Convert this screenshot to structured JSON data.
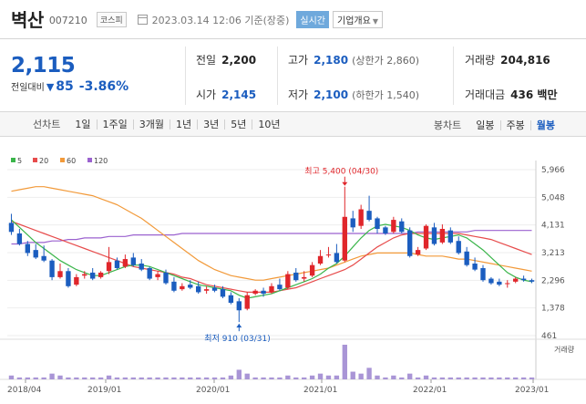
{
  "header": {
    "stock_name": "벽산",
    "stock_code": "007210",
    "market": "코스피",
    "date": "2023.03.14 12:06 기준(장중)",
    "realtime_label": "실시간",
    "company_label": "기업개요"
  },
  "price": {
    "current": "2,115",
    "change_label": "전일대비",
    "change_value": "85",
    "change_rate": "-3.86%"
  },
  "stats": {
    "prev_close_label": "전일",
    "prev_close": "2,200",
    "open_label": "시가",
    "open": "2,145",
    "high_label": "고가",
    "high": "2,180",
    "upper_limit": "(상한가 2,860)",
    "low_label": "저가",
    "low": "2,100",
    "lower_limit": "(하한가 1,540)",
    "volume_label": "거래량",
    "volume": "204,816",
    "amount_label": "거래대금",
    "amount": "436 백만"
  },
  "toolbar": {
    "line_title": "선차트",
    "line_items": [
      "1일",
      "1주일",
      "3개월",
      "1년",
      "3년",
      "5년",
      "10년"
    ],
    "candle_title": "봉차트",
    "candle_items": [
      "일봉",
      "주봉",
      "월봉"
    ],
    "candle_active": "월봉"
  },
  "colors": {
    "up": "#e0262b",
    "down": "#1b5dbf",
    "ma5": "#3ab54a",
    "ma20": "#e74c4c",
    "ma60": "#f29a3a",
    "ma120": "#9b62cf",
    "volume": "#a995d6"
  },
  "chart_data": {
    "type": "candlestick",
    "legend": [
      "5",
      "20",
      "60",
      "120"
    ],
    "y_ticks": [
      "5,966",
      "5,048",
      "4,131",
      "3,213",
      "2,296",
      "1,378",
      "461"
    ],
    "ylim": [
      461,
      5966
    ],
    "x_ticks": [
      "2018/04",
      "2019/01",
      "2020/01",
      "2021/01",
      "2022/01",
      "2023/01"
    ],
    "volume_label": "거래량",
    "annotations": {
      "high": "최고 5,400 (04/30)",
      "low": "최저 910 (03/31)"
    },
    "candles": [
      [
        4200,
        4500,
        3900,
        3800
      ],
      [
        3850,
        4000,
        3500,
        3450
      ],
      [
        3500,
        3600,
        3200,
        3100
      ],
      [
        3300,
        3500,
        3050,
        3000
      ],
      [
        3100,
        3450,
        2950,
        2900
      ],
      [
        2950,
        3000,
        2400,
        2300
      ],
      [
        2400,
        2850,
        2600,
        2350
      ],
      [
        2600,
        2700,
        2100,
        2050
      ],
      [
        2150,
        2500,
        2400,
        2100
      ],
      [
        2450,
        2600,
        2500,
        2350
      ],
      [
        2550,
        2700,
        2350,
        2300
      ],
      [
        2400,
        2600,
        2550,
        2350
      ],
      [
        2600,
        3400,
        2900,
        2500
      ],
      [
        2950,
        3050,
        2700,
        2650
      ],
      [
        2750,
        3150,
        3000,
        2700
      ],
      [
        3050,
        3200,
        2800,
        2750
      ],
      [
        2850,
        3000,
        2650,
        2600
      ],
      [
        2700,
        2750,
        2350,
        2300
      ],
      [
        2400,
        2600,
        2500,
        2300
      ],
      [
        2550,
        2650,
        2200,
        2150
      ],
      [
        2250,
        2400,
        1950,
        1900
      ],
      [
        2000,
        2200,
        2100,
        1950
      ],
      [
        2150,
        2300,
        2050,
        2000
      ],
      [
        2100,
        2250,
        1900,
        1850
      ],
      [
        1950,
        2100,
        2000,
        1850
      ],
      [
        2050,
        2150,
        1950,
        1900
      ],
      [
        2000,
        2100,
        1750,
        1700
      ],
      [
        1800,
        1900,
        1550,
        1500
      ],
      [
        1600,
        1700,
        1300,
        910
      ],
      [
        1350,
        1900,
        1800,
        1300
      ],
      [
        1850,
        2000,
        1950,
        1800
      ],
      [
        1950,
        2050,
        1850,
        1750
      ],
      [
        1900,
        2200,
        2100,
        1850
      ],
      [
        2150,
        2350,
        2000,
        1950
      ],
      [
        2050,
        2600,
        2500,
        2000
      ],
      [
        2550,
        2700,
        2300,
        2250
      ],
      [
        2350,
        2600,
        2400,
        2250
      ],
      [
        2450,
        2900,
        2800,
        2400
      ],
      [
        2850,
        3300,
        3100,
        2800
      ],
      [
        3150,
        3400,
        3150,
        3050
      ],
      [
        3200,
        3500,
        2900,
        2850
      ],
      [
        2950,
        5400,
        4400,
        2900
      ],
      [
        4350,
        4600,
        4050,
        3900
      ],
      [
        4100,
        4800,
        4650,
        4000
      ],
      [
        4600,
        5100,
        4300,
        4250
      ],
      [
        4350,
        4400,
        4000,
        3850
      ],
      [
        4050,
        4100,
        3850,
        3800
      ],
      [
        3900,
        4400,
        4300,
        3850
      ],
      [
        4250,
        4350,
        3900,
        3850
      ],
      [
        3950,
        4050,
        3100,
        3050
      ],
      [
        3150,
        3400,
        3300,
        3100
      ],
      [
        3350,
        4150,
        4100,
        3300
      ],
      [
        4050,
        4200,
        3500,
        3450
      ],
      [
        3550,
        4150,
        4000,
        3500
      ],
      [
        3950,
        4050,
        3550,
        3500
      ],
      [
        3600,
        3750,
        3200,
        3150
      ],
      [
        3250,
        3400,
        2800,
        2750
      ],
      [
        2850,
        3050,
        2650,
        2600
      ],
      [
        2700,
        2800,
        2300,
        2250
      ],
      [
        2350,
        2400,
        2200,
        2150
      ],
      [
        2250,
        2350,
        2150,
        2100
      ],
      [
        2200,
        2300,
        2200,
        2050
      ],
      [
        2250,
        2400,
        2350,
        2200
      ],
      [
        2350,
        2450,
        2300,
        2250
      ],
      [
        2300,
        2350,
        2250,
        2200
      ]
    ],
    "ma5": [
      4300,
      4050,
      3800,
      3550,
      3350,
      3150,
      2950,
      2800,
      2650,
      2550,
      2450,
      2450,
      2550,
      2650,
      2750,
      2800,
      2800,
      2750,
      2650,
      2550,
      2450,
      2350,
      2250,
      2150,
      2100,
      2050,
      2000,
      1950,
      1800,
      1700,
      1750,
      1800,
      1850,
      1950,
      2050,
      2150,
      2250,
      2350,
      2500,
      2700,
      2850,
      3100,
      3400,
      3700,
      3950,
      4100,
      4150,
      4100,
      4050,
      3950,
      3800,
      3700,
      3650,
      3700,
      3750,
      3800,
      3700,
      3500,
      3300,
      3050,
      2800,
      2550,
      2400,
      2300,
      2250
    ],
    "ma20": [
      4250,
      4150,
      4050,
      3950,
      3850,
      3750,
      3650,
      3550,
      3450,
      3350,
      3250,
      3150,
      3050,
      2950,
      2850,
      2750,
      2700,
      2650,
      2600,
      2550,
      2500,
      2400,
      2350,
      2250,
      2150,
      2100,
      2050,
      2000,
      1950,
      1900,
      1900,
      1900,
      1900,
      1950,
      2000,
      2050,
      2150,
      2250,
      2350,
      2450,
      2550,
      2650,
      2800,
      3000,
      3200,
      3400,
      3550,
      3700,
      3800,
      3850,
      3850,
      3850,
      3850,
      3850,
      3850,
      3850,
      3800,
      3750,
      3700,
      3650,
      3550,
      3450,
      3350,
      3250,
      3150
    ],
    "ma60": [
      5250,
      5300,
      5350,
      5400,
      5400,
      5350,
      5300,
      5250,
      5200,
      5150,
      5100,
      5000,
      4900,
      4800,
      4650,
      4500,
      4350,
      4150,
      3950,
      3750,
      3550,
      3350,
      3150,
      2950,
      2800,
      2650,
      2550,
      2450,
      2400,
      2350,
      2300,
      2300,
      2350,
      2400,
      2450,
      2500,
      2550,
      2600,
      2650,
      2700,
      2800,
      2900,
      3000,
      3100,
      3150,
      3200,
      3200,
      3200,
      3200,
      3200,
      3150,
      3100,
      3100,
      3100,
      3050,
      3000,
      3000,
      2950,
      2900,
      2850,
      2800,
      2750,
      2700,
      2650,
      2600
    ],
    "ma120": [
      3500,
      3500,
      3550,
      3550,
      3550,
      3600,
      3600,
      3650,
      3650,
      3700,
      3700,
      3700,
      3750,
      3750,
      3750,
      3800,
      3800,
      3800,
      3800,
      3800,
      3800,
      3850,
      3850,
      3850,
      3850,
      3850,
      3850,
      3850,
      3850,
      3850,
      3850,
      3850,
      3850,
      3850,
      3850,
      3850,
      3850,
      3850,
      3850,
      3850,
      3850,
      3850,
      3850,
      3850,
      3850,
      3850,
      3850,
      3850,
      3850,
      3850,
      3900,
      3900,
      3900,
      3900,
      3900,
      3900,
      3900,
      3950,
      3950,
      3950,
      3950,
      3950,
      3950,
      3950,
      3950
    ],
    "volume": [
      2,
      1,
      1,
      1,
      1,
      3,
      2,
      1,
      1,
      1,
      1,
      1,
      2,
      1,
      1,
      1,
      1,
      1,
      1,
      1,
      1,
      1,
      1,
      1,
      1,
      1,
      1,
      2,
      5,
      3,
      1,
      1,
      1,
      1,
      2,
      1,
      1,
      2,
      3,
      2,
      2,
      18,
      4,
      3,
      6,
      2,
      1,
      2,
      1,
      3,
      1,
      2,
      1,
      1,
      1,
      1,
      1,
      1,
      1,
      1,
      1,
      1,
      1,
      1,
      1
    ]
  }
}
